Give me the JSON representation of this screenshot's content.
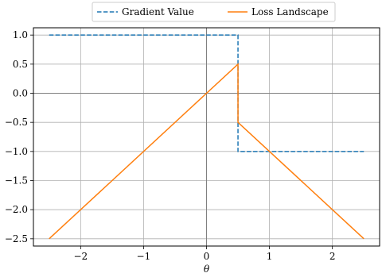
{
  "chart_data": {
    "type": "line",
    "title": "",
    "xlabel": "θ",
    "ylabel": "",
    "xlim": [
      -2.75,
      2.75
    ],
    "ylim": [
      -2.625,
      1.125
    ],
    "xticks": [
      -2,
      -1,
      0,
      1,
      2
    ],
    "xtick_labels": [
      "−2",
      "−1",
      "0",
      "1",
      "2"
    ],
    "yticks": [
      1.0,
      0.5,
      0.0,
      -0.5,
      -1.0,
      -1.5,
      -2.0,
      -2.5
    ],
    "ytick_labels": [
      "1.0",
      "0.5",
      "0.0",
      "−0.5",
      "−1.0",
      "−1.5",
      "−2.0",
      "−2.5"
    ],
    "grid": true,
    "zero_lines": true,
    "legend_position": "top-center",
    "series": [
      {
        "name": "Gradient Value",
        "color": "#1f77b4",
        "style": "dashed",
        "x": [
          -2.5,
          0.5,
          0.5,
          2.5
        ],
        "y": [
          1.0,
          1.0,
          -1.0,
          -1.0
        ]
      },
      {
        "name": "Loss Landscape",
        "color": "#ff7f0e",
        "style": "solid",
        "x": [
          -2.5,
          0.5,
          0.5,
          2.5
        ],
        "y": [
          -2.5,
          0.5,
          -0.5,
          -2.5
        ]
      }
    ]
  }
}
